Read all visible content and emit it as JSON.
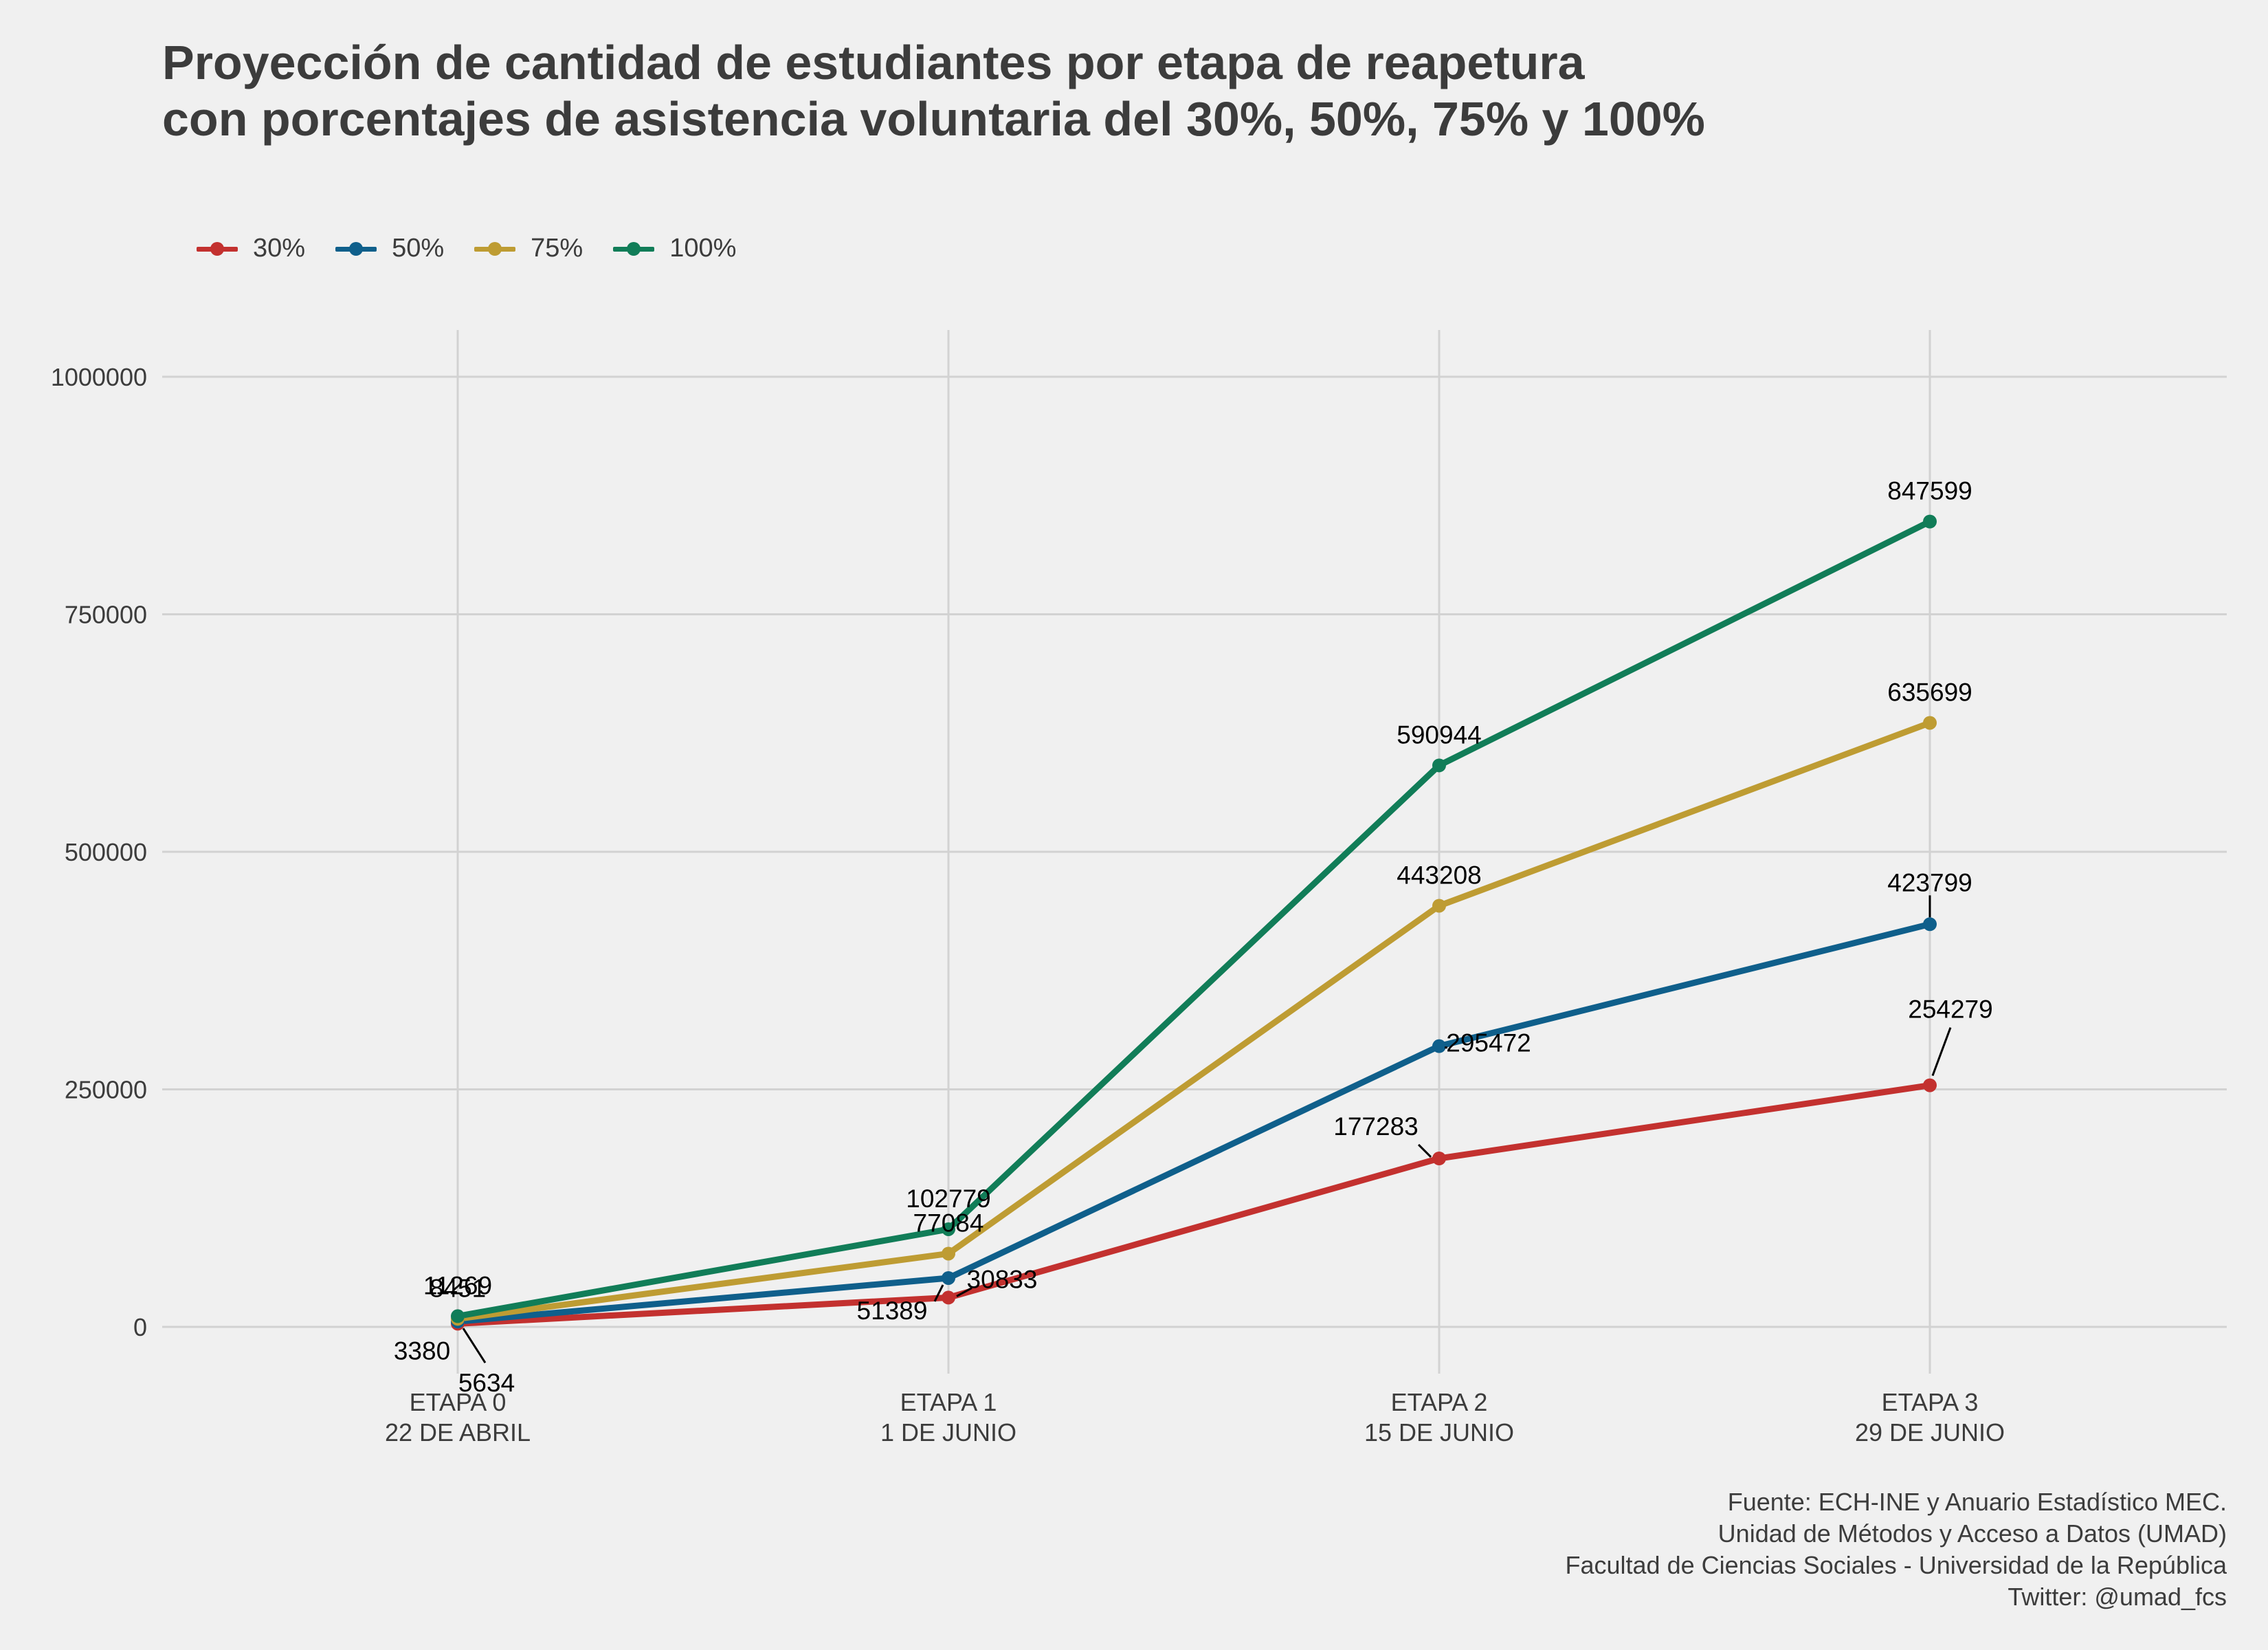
{
  "caption": {
    "lines": [
      "Fuente: ECH-INE y Anuario Estadístico MEC.",
      "Unidad de Métodos y Acceso a Datos (UMAD)",
      "Facultad de Ciencias Sociales - Universidad de la República",
      "Twitter: @umad_fcs"
    ]
  },
  "chart_data": {
    "type": "line",
    "title": [
      "Proyección de cantidad de estudiantes por etapa de reapetura",
      "con porcentajes de asistencia voluntaria del 30%, 50%, 75% y 100%"
    ],
    "xlabel": "",
    "ylabel": "",
    "categories": [
      [
        "ETAPA 0",
        "22 DE ABRIL"
      ],
      [
        "ETAPA 1",
        "1 DE JUNIO"
      ],
      [
        "ETAPA 2",
        "15 DE JUNIO"
      ],
      [
        "ETAPA 3",
        "29 DE JUNIO"
      ]
    ],
    "ylim": [
      -50000,
      1050000
    ],
    "yticks": [
      0,
      250000,
      500000,
      750000,
      1000000
    ],
    "grid": true,
    "legend_position": "top-left",
    "series": [
      {
        "name": "30%",
        "color": "#c3312f",
        "values": [
          3380,
          30833,
          177283,
          254279
        ]
      },
      {
        "name": "50%",
        "color": "#0f5f8b",
        "values": [
          5634,
          51389,
          295472,
          423799
        ]
      },
      {
        "name": "75%",
        "color": "#be9c33",
        "values": [
          8451,
          77084,
          443208,
          635699
        ]
      },
      {
        "name": "100%",
        "color": "#117d58",
        "values": [
          11269,
          102779,
          590944,
          847599
        ]
      }
    ]
  }
}
